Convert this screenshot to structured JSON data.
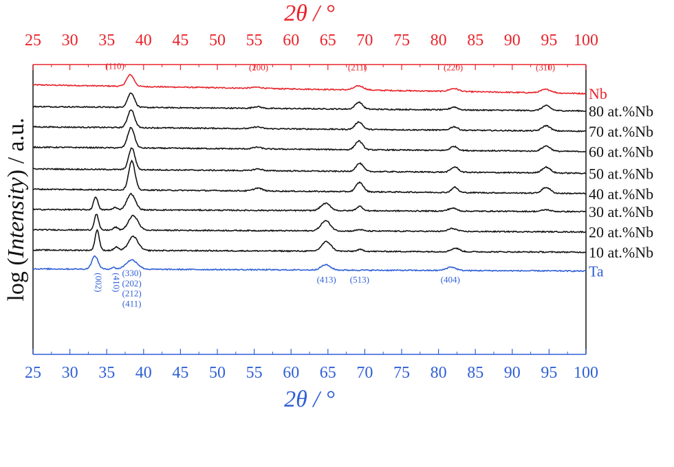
{
  "chart_data": {
    "type": "line",
    "top_axis": {
      "label": "2θ / °",
      "color": "#e8232a",
      "range": [
        25,
        100
      ],
      "ticks": [
        25,
        30,
        35,
        40,
        45,
        50,
        55,
        60,
        65,
        70,
        75,
        80,
        85,
        90,
        95,
        100
      ],
      "tick_labels": [
        "25",
        "30",
        "35",
        "40",
        "45",
        "50",
        "55",
        "60",
        "65",
        "70",
        "75",
        "80",
        "85",
        "90",
        "95",
        "100"
      ]
    },
    "bottom_axis": {
      "label": "2θ / °",
      "color": "#2f5fd6",
      "range": [
        25,
        100
      ],
      "ticks": [
        25,
        30,
        35,
        40,
        45,
        50,
        55,
        60,
        65,
        70,
        75,
        80,
        85,
        90,
        95,
        100
      ],
      "tick_labels": [
        "25",
        "30",
        "35",
        "40",
        "45",
        "50",
        "55",
        "60",
        "65",
        "70",
        "75",
        "80",
        "85",
        "90",
        "95",
        "100"
      ]
    },
    "ylabel_prefix": "log (",
    "ylabel_italic": "Intensity",
    "ylabel_suffix": ") / a.u.",
    "series": [
      {
        "name": "Nb",
        "color": "#e8232a",
        "baseline": 0.93,
        "slope": -0.0004,
        "peaks": [
          {
            "x": 38.2,
            "h": 0.04,
            "w": 0.7
          },
          {
            "x": 55.4,
            "h": 0.004,
            "w": 1.0
          },
          {
            "x": 69.2,
            "h": 0.014,
            "w": 0.9
          },
          {
            "x": 82.1,
            "h": 0.01,
            "w": 0.9
          },
          {
            "x": 94.6,
            "h": 0.012,
            "w": 1.0
          }
        ]
      },
      {
        "name": "80 at.%Nb",
        "color": "#111111",
        "baseline": 0.855,
        "slope": -0.0002,
        "peaks": [
          {
            "x": 38.3,
            "h": 0.05,
            "w": 0.65
          },
          {
            "x": 55.4,
            "h": 0.006,
            "w": 0.8
          },
          {
            "x": 69.2,
            "h": 0.024,
            "w": 0.7
          },
          {
            "x": 82.1,
            "h": 0.01,
            "w": 0.7
          },
          {
            "x": 94.6,
            "h": 0.017,
            "w": 0.8
          }
        ]
      },
      {
        "name": "70 at.%Nb",
        "color": "#111111",
        "baseline": 0.785,
        "slope": -0.0002,
        "peaks": [
          {
            "x": 38.3,
            "h": 0.062,
            "w": 0.65
          },
          {
            "x": 55.4,
            "h": 0.006,
            "w": 0.8
          },
          {
            "x": 69.2,
            "h": 0.026,
            "w": 0.7
          },
          {
            "x": 82.1,
            "h": 0.012,
            "w": 0.7
          },
          {
            "x": 94.6,
            "h": 0.018,
            "w": 0.8
          }
        ]
      },
      {
        "name": "60 at.%Nb",
        "color": "#111111",
        "baseline": 0.715,
        "slope": -0.0002,
        "peaks": [
          {
            "x": 38.3,
            "h": 0.07,
            "w": 0.65
          },
          {
            "x": 55.4,
            "h": 0.006,
            "w": 0.8
          },
          {
            "x": 69.2,
            "h": 0.03,
            "w": 0.7
          },
          {
            "x": 82.1,
            "h": 0.014,
            "w": 0.7
          },
          {
            "x": 94.6,
            "h": 0.018,
            "w": 0.8
          }
        ]
      },
      {
        "name": "50 at.%Nb",
        "color": "#111111",
        "baseline": 0.64,
        "slope": -0.0002,
        "peaks": [
          {
            "x": 38.4,
            "h": 0.075,
            "w": 0.6
          },
          {
            "x": 55.5,
            "h": 0.006,
            "w": 0.8
          },
          {
            "x": 69.3,
            "h": 0.028,
            "w": 0.7
          },
          {
            "x": 82.2,
            "h": 0.018,
            "w": 0.7
          },
          {
            "x": 94.6,
            "h": 0.02,
            "w": 0.8
          }
        ]
      },
      {
        "name": "40 at.%Nb",
        "color": "#111111",
        "baseline": 0.57,
        "slope": -0.0002,
        "peaks": [
          {
            "x": 38.4,
            "h": 0.1,
            "w": 0.6
          },
          {
            "x": 55.5,
            "h": 0.01,
            "w": 0.8
          },
          {
            "x": 69.3,
            "h": 0.032,
            "w": 0.7
          },
          {
            "x": 82.2,
            "h": 0.018,
            "w": 0.6
          },
          {
            "x": 94.6,
            "h": 0.02,
            "w": 0.8
          }
        ]
      },
      {
        "name": "30 at.%Nb",
        "color": "#111111",
        "baseline": 0.5,
        "slope": -0.0001,
        "peaks": [
          {
            "x": 33.5,
            "h": 0.045,
            "w": 0.4
          },
          {
            "x": 36.1,
            "h": 0.008,
            "w": 0.4
          },
          {
            "x": 38.3,
            "h": 0.055,
            "w": 0.8
          },
          {
            "x": 64.7,
            "h": 0.025,
            "w": 0.9
          },
          {
            "x": 69.3,
            "h": 0.015,
            "w": 0.6
          },
          {
            "x": 81.9,
            "h": 0.01,
            "w": 0.8
          },
          {
            "x": 94.6,
            "h": 0.006,
            "w": 0.8
          }
        ]
      },
      {
        "name": "20 at.%Nb",
        "color": "#111111",
        "baseline": 0.43,
        "slope": -0.0001,
        "peaks": [
          {
            "x": 33.6,
            "h": 0.055,
            "w": 0.4
          },
          {
            "x": 36.2,
            "h": 0.01,
            "w": 0.4
          },
          {
            "x": 38.6,
            "h": 0.05,
            "w": 0.9
          },
          {
            "x": 64.7,
            "h": 0.035,
            "w": 0.9
          },
          {
            "x": 69.3,
            "h": 0.005,
            "w": 0.6
          },
          {
            "x": 81.9,
            "h": 0.01,
            "w": 0.8
          }
        ]
      },
      {
        "name": "10 at.%Nb",
        "color": "#111111",
        "baseline": 0.36,
        "slope": -0.0001,
        "peaks": [
          {
            "x": 33.7,
            "h": 0.07,
            "w": 0.4
          },
          {
            "x": 36.3,
            "h": 0.012,
            "w": 0.4
          },
          {
            "x": 38.6,
            "h": 0.048,
            "w": 0.9
          },
          {
            "x": 64.8,
            "h": 0.033,
            "w": 0.9
          },
          {
            "x": 69.4,
            "h": 0.006,
            "w": 0.6
          },
          {
            "x": 82.3,
            "h": 0.012,
            "w": 0.8
          }
        ]
      },
      {
        "name": "Ta",
        "color": "#2f5fd6",
        "baseline": 0.295,
        "slope": -0.0001,
        "peaks": [
          {
            "x": 33.4,
            "h": 0.045,
            "w": 0.6
          },
          {
            "x": 35.9,
            "h": 0.006,
            "w": 0.4
          },
          {
            "x": 38.4,
            "h": 0.032,
            "w": 1.1
          },
          {
            "x": 64.7,
            "h": 0.018,
            "w": 0.9
          },
          {
            "x": 81.7,
            "h": 0.012,
            "w": 0.9
          }
        ]
      }
    ],
    "annotations_top": [
      {
        "text": "(110)",
        "x": 36.1,
        "y": 0.985,
        "color": "#e8232a"
      },
      {
        "text": "(200)",
        "x": 55.6,
        "y": 0.98,
        "color": "#e8232a"
      },
      {
        "text": "(211)",
        "x": 69.0,
        "y": 0.98,
        "color": "#e8232a"
      },
      {
        "text": "(220)",
        "x": 82.0,
        "y": 0.98,
        "color": "#e8232a"
      },
      {
        "text": "(310)",
        "x": 94.5,
        "y": 0.98,
        "color": "#e8232a"
      }
    ],
    "annotations_bottom": [
      {
        "text": "(002)",
        "x": 33.5,
        "y": 0.248,
        "color": "#2f5fd6",
        "rotate": true
      },
      {
        "text": "(410)",
        "x": 35.9,
        "y": 0.248,
        "color": "#2f5fd6",
        "rotate": true
      },
      {
        "text": "(330)",
        "x": 38.4,
        "y": 0.27,
        "color": "#2f5fd6"
      },
      {
        "text": "(202)",
        "x": 38.4,
        "y": 0.235,
        "color": "#2f5fd6"
      },
      {
        "text": "(212)",
        "x": 38.4,
        "y": 0.2,
        "color": "#2f5fd6"
      },
      {
        "text": "(411)",
        "x": 38.4,
        "y": 0.165,
        "color": "#2f5fd6"
      },
      {
        "text": "(413)",
        "x": 64.8,
        "y": 0.248,
        "color": "#2f5fd6"
      },
      {
        "text": "(513)",
        "x": 69.3,
        "y": 0.248,
        "color": "#2f5fd6"
      },
      {
        "text": "(404)",
        "x": 81.6,
        "y": 0.248,
        "color": "#2f5fd6"
      }
    ],
    "ylim": [
      0,
      1
    ],
    "grid": false,
    "legend": "right-of-curves"
  }
}
